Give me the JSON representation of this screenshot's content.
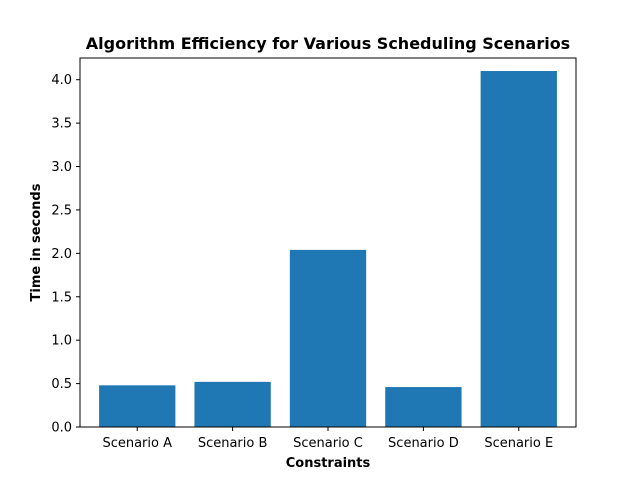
{
  "chart_data": {
    "type": "bar",
    "title": "Algorithm Efficiency for Various Scheduling Scenarios",
    "xlabel": "Constraints",
    "ylabel": "Time in seconds",
    "categories": [
      "Scenario A",
      "Scenario B",
      "Scenario C",
      "Scenario D",
      "Scenario E"
    ],
    "values": [
      0.48,
      0.52,
      2.04,
      0.46,
      4.1
    ],
    "ylim": [
      0,
      4.25
    ],
    "yticks": [
      "0.0",
      "0.5",
      "1.0",
      "1.5",
      "2.0",
      "2.5",
      "3.0",
      "3.5",
      "4.0"
    ],
    "grid": false,
    "legend": "none",
    "bar_color": "#1f77b4"
  }
}
